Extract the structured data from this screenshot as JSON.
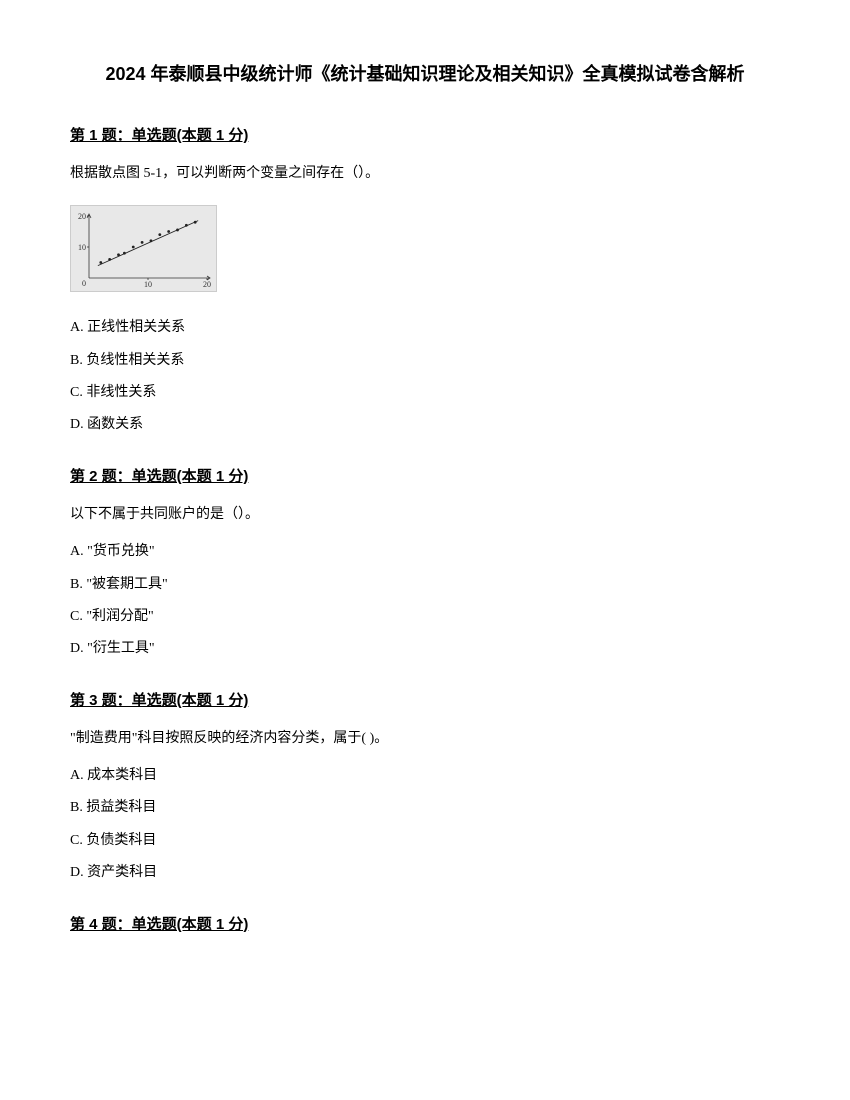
{
  "title": "2024 年泰顺县中级统计师《统计基础知识理论及相关知识》全真模拟试卷含解析",
  "questions": [
    {
      "header": "第 1 题：单选题(本题 1 分)",
      "text": "根据散点图 5-1，可以判断两个变量之间存在（）。",
      "hasChart": true,
      "options": [
        "A. 正线性相关关系",
        "B. 负线性相关关系",
        "C. 非线性关系",
        "D. 函数关系"
      ]
    },
    {
      "header": "第 2 题：单选题(本题 1 分)",
      "text": "以下不属于共同账户的是（）。",
      "options": [
        "A. \"货币兑换\"",
        "B. \"被套期工具\"",
        "C. \"利润分配\"",
        "D. \"衍生工具\""
      ]
    },
    {
      "header": "第 3 题：单选题(本题 1 分)",
      "text": "\"制造费用\"科目按照反映的经济内容分类，属于( )。",
      "options": [
        "A. 成本类科目",
        "B. 损益类科目",
        "C. 负债类科目",
        "D. 资产类科目"
      ]
    },
    {
      "header": "第 4 题：单选题(本题 1 分)"
    }
  ],
  "chart": {
    "type": "scatter",
    "background": "#e8e8e8",
    "points": [
      {
        "x": 2,
        "y": 5
      },
      {
        "x": 3.5,
        "y": 6
      },
      {
        "x": 5,
        "y": 7.5
      },
      {
        "x": 6,
        "y": 8
      },
      {
        "x": 7.5,
        "y": 10
      },
      {
        "x": 9,
        "y": 11.5
      },
      {
        "x": 10.5,
        "y": 12
      },
      {
        "x": 12,
        "y": 14
      },
      {
        "x": 13.5,
        "y": 15
      },
      {
        "x": 15,
        "y": 15.5
      },
      {
        "x": 16.5,
        "y": 17
      },
      {
        "x": 18,
        "y": 18
      }
    ],
    "xlim": [
      0,
      20
    ],
    "ylim": [
      0,
      20
    ],
    "yticks": [
      10,
      20
    ],
    "xtick_y_label": "0",
    "xticks": [
      10,
      20
    ],
    "point_color": "#222222",
    "line_color": "#222222",
    "axis_color": "#333333"
  }
}
